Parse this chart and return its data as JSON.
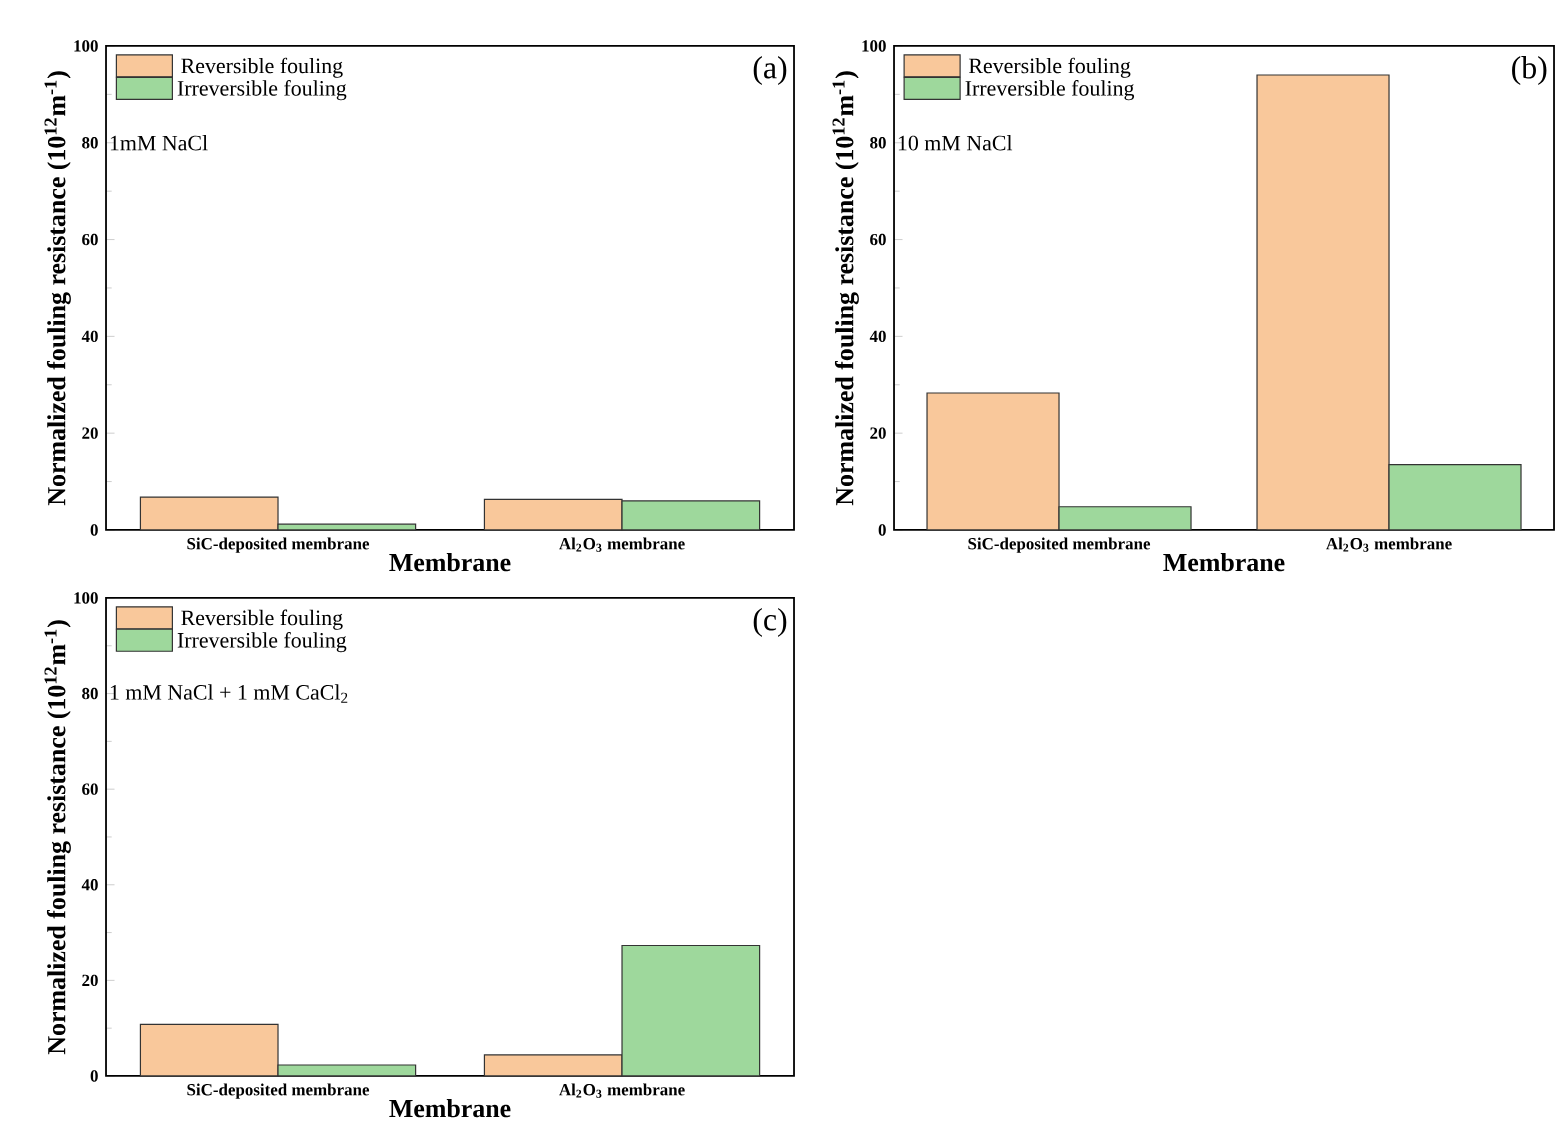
{
  "chart_data": [
    {
      "type": "bar",
      "categories": [
        "SiC-deposited membrane",
        "Al$_{2}$O$_{3}$ membrane"
      ],
      "xlabel": "Membrane",
      "ylabel": "Normalized fouling resistance (10$^{12}$m$^{-1}$)",
      "ylim": [
        0,
        100
      ],
      "yticks": [
        0,
        20,
        40,
        60,
        80,
        100
      ],
      "legend": "top left",
      "annotations": [
        "(a)",
        "1mM NaCl"
      ],
      "series": [
        {
          "name": "Reversible fouling",
          "color": "#f9c89b",
          "values": [
            6.8,
            6.3
          ]
        },
        {
          "name": "Irreversible fouling",
          "color": "#9ed89c",
          "values": [
            1.2,
            6.0
          ]
        }
      ]
    },
    {
      "type": "bar",
      "categories": [
        "SiC-deposited membrane",
        "Al$_{2}$O$_{3}$ membrane"
      ],
      "xlabel": "Membrane",
      "ylabel": "Normalized fouling resistance (10$^{12}$m$^{-1}$)",
      "ylim": [
        0,
        100
      ],
      "yticks": [
        0,
        20,
        40,
        60,
        80,
        100
      ],
      "legend": "top left",
      "annotations": [
        "(b)",
        "10 mM NaCl"
      ],
      "series": [
        {
          "name": "Reversible fouling",
          "color": "#f9c89b",
          "values": [
            28.3,
            94
          ]
        },
        {
          "name": "Irreversible fouling",
          "color": "#9ed89c",
          "values": [
            4.8,
            13.5
          ]
        }
      ]
    },
    {
      "type": "bar",
      "categories": [
        "SiC-deposited membrane",
        "Al$_{2}$O$_{3}$ membrane"
      ],
      "xlabel": "Membrane",
      "ylabel": "Normalized fouling resistance (10$^{12}$m$^{-1}$)",
      "ylim": [
        0,
        100
      ],
      "yticks": [
        0,
        20,
        40,
        60,
        80,
        100
      ],
      "legend": "top left",
      "annotations": [
        "(c)",
        "1 mM NaCl + 1 mM CaCl$_{2}$"
      ],
      "series": [
        {
          "name": "Reversible fouling",
          "color": "#f9c89b",
          "values": [
            10.8,
            4.4
          ]
        },
        {
          "name": "Irreversible fouling",
          "color": "#9ed89c",
          "values": [
            2.3,
            27.3
          ]
        }
      ]
    }
  ]
}
